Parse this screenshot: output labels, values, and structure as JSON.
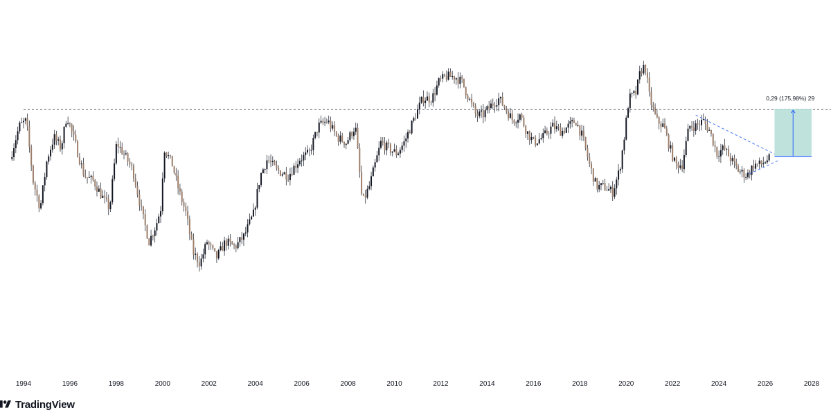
{
  "brand": {
    "name": "TradingView",
    "logo_icon": "tradingview-logo-icon"
  },
  "colors": {
    "up": "#131722",
    "down": "#9c7e6a",
    "wick": "#2a2e39",
    "resistance": "#5d606b",
    "channel": "#4a7cf0",
    "target_fill": "#bfe3dc",
    "target_line": "#2962ff"
  },
  "chart_data": {
    "type": "candlestick",
    "timeframe": "monthly",
    "x_axis": {
      "ticks": [
        "1994",
        "1996",
        "1998",
        "2000",
        "2002",
        "2004",
        "2006",
        "2008",
        "2010",
        "2012",
        "2014",
        "2016",
        "2018",
        "2020",
        "2022",
        "2024",
        "2026",
        "2028"
      ],
      "range": [
        1993.4,
        2029.0
      ]
    },
    "y_axis": {
      "visible": false,
      "range": [
        0.05,
        0.56
      ],
      "scale": "linear"
    },
    "grid": false,
    "legend": "none",
    "price_path": [
      [
        1993.5,
        0.34
      ],
      [
        1993.9,
        0.4
      ],
      [
        1994.2,
        0.41
      ],
      [
        1994.5,
        0.3
      ],
      [
        1994.8,
        0.25
      ],
      [
        1995.1,
        0.34
      ],
      [
        1995.4,
        0.38
      ],
      [
        1995.7,
        0.36
      ],
      [
        1995.95,
        0.42
      ],
      [
        1996.3,
        0.37
      ],
      [
        1996.7,
        0.31
      ],
      [
        1997.1,
        0.3
      ],
      [
        1997.5,
        0.27
      ],
      [
        1997.8,
        0.25
      ],
      [
        1998.1,
        0.37
      ],
      [
        1998.4,
        0.35
      ],
      [
        1998.8,
        0.32
      ],
      [
        1999.2,
        0.24
      ],
      [
        1999.5,
        0.19
      ],
      [
        1999.8,
        0.22
      ],
      [
        2000.0,
        0.25
      ],
      [
        2000.15,
        0.36
      ],
      [
        2000.5,
        0.33
      ],
      [
        2000.8,
        0.28
      ],
      [
        2001.1,
        0.24
      ],
      [
        2001.4,
        0.17
      ],
      [
        2001.7,
        0.15
      ],
      [
        2002.0,
        0.19
      ],
      [
        2002.4,
        0.16
      ],
      [
        2002.8,
        0.19
      ],
      [
        2003.2,
        0.18
      ],
      [
        2003.6,
        0.2
      ],
      [
        2004.0,
        0.24
      ],
      [
        2004.3,
        0.31
      ],
      [
        2004.6,
        0.34
      ],
      [
        2005.0,
        0.32
      ],
      [
        2005.5,
        0.31
      ],
      [
        2006.0,
        0.34
      ],
      [
        2006.4,
        0.35
      ],
      [
        2006.8,
        0.4
      ],
      [
        2007.2,
        0.41
      ],
      [
        2007.6,
        0.38
      ],
      [
        2008.0,
        0.37
      ],
      [
        2008.4,
        0.4
      ],
      [
        2008.7,
        0.26
      ],
      [
        2009.0,
        0.29
      ],
      [
        2009.5,
        0.37
      ],
      [
        2009.8,
        0.36
      ],
      [
        2010.2,
        0.35
      ],
      [
        2010.5,
        0.37
      ],
      [
        2010.9,
        0.41
      ],
      [
        2011.3,
        0.45
      ],
      [
        2011.7,
        0.45
      ],
      [
        2012.0,
        0.48
      ],
      [
        2012.3,
        0.49
      ],
      [
        2012.7,
        0.49
      ],
      [
        2013.0,
        0.48
      ],
      [
        2013.3,
        0.45
      ],
      [
        2013.6,
        0.42
      ],
      [
        2013.9,
        0.42
      ],
      [
        2014.3,
        0.44
      ],
      [
        2014.6,
        0.45
      ],
      [
        2014.9,
        0.43
      ],
      [
        2015.2,
        0.41
      ],
      [
        2015.5,
        0.42
      ],
      [
        2015.8,
        0.39
      ],
      [
        2016.1,
        0.37
      ],
      [
        2016.5,
        0.38
      ],
      [
        2016.9,
        0.4
      ],
      [
        2017.3,
        0.39
      ],
      [
        2017.6,
        0.4
      ],
      [
        2017.9,
        0.41
      ],
      [
        2018.2,
        0.38
      ],
      [
        2018.5,
        0.33
      ],
      [
        2018.8,
        0.29
      ],
      [
        2019.1,
        0.29
      ],
      [
        2019.5,
        0.28
      ],
      [
        2019.8,
        0.32
      ],
      [
        2020.0,
        0.38
      ],
      [
        2020.2,
        0.45
      ],
      [
        2020.5,
        0.46
      ],
      [
        2020.7,
        0.5
      ],
      [
        2020.9,
        0.51
      ],
      [
        2021.1,
        0.45
      ],
      [
        2021.4,
        0.41
      ],
      [
        2021.7,
        0.4
      ],
      [
        2021.9,
        0.37
      ],
      [
        2022.2,
        0.33
      ],
      [
        2022.5,
        0.33
      ],
      [
        2022.8,
        0.4
      ],
      [
        2023.1,
        0.4
      ],
      [
        2023.4,
        0.41
      ],
      [
        2023.7,
        0.39
      ],
      [
        2024.0,
        0.35
      ],
      [
        2024.3,
        0.36
      ],
      [
        2024.6,
        0.34
      ],
      [
        2024.9,
        0.32
      ],
      [
        2025.3,
        0.31
      ],
      [
        2025.6,
        0.33
      ],
      [
        2025.9,
        0.33
      ],
      [
        2026.2,
        0.34
      ]
    ],
    "resistance_line": {
      "value": 0.43,
      "style": "dashed",
      "from": 1994.0,
      "to": 2029.0
    },
    "channel": {
      "style": "dashed",
      "upper": [
        [
          2023.0,
          0.42
        ],
        [
          2026.6,
          0.345
        ]
      ],
      "lower": [
        [
          2025.3,
          0.313
        ],
        [
          2026.6,
          0.338
        ]
      ]
    },
    "projection": {
      "from": 0.345,
      "to": 0.43,
      "x_from": 2026.4,
      "x_to": 2028.0,
      "label": "0,29 (175,98%) 29"
    }
  }
}
